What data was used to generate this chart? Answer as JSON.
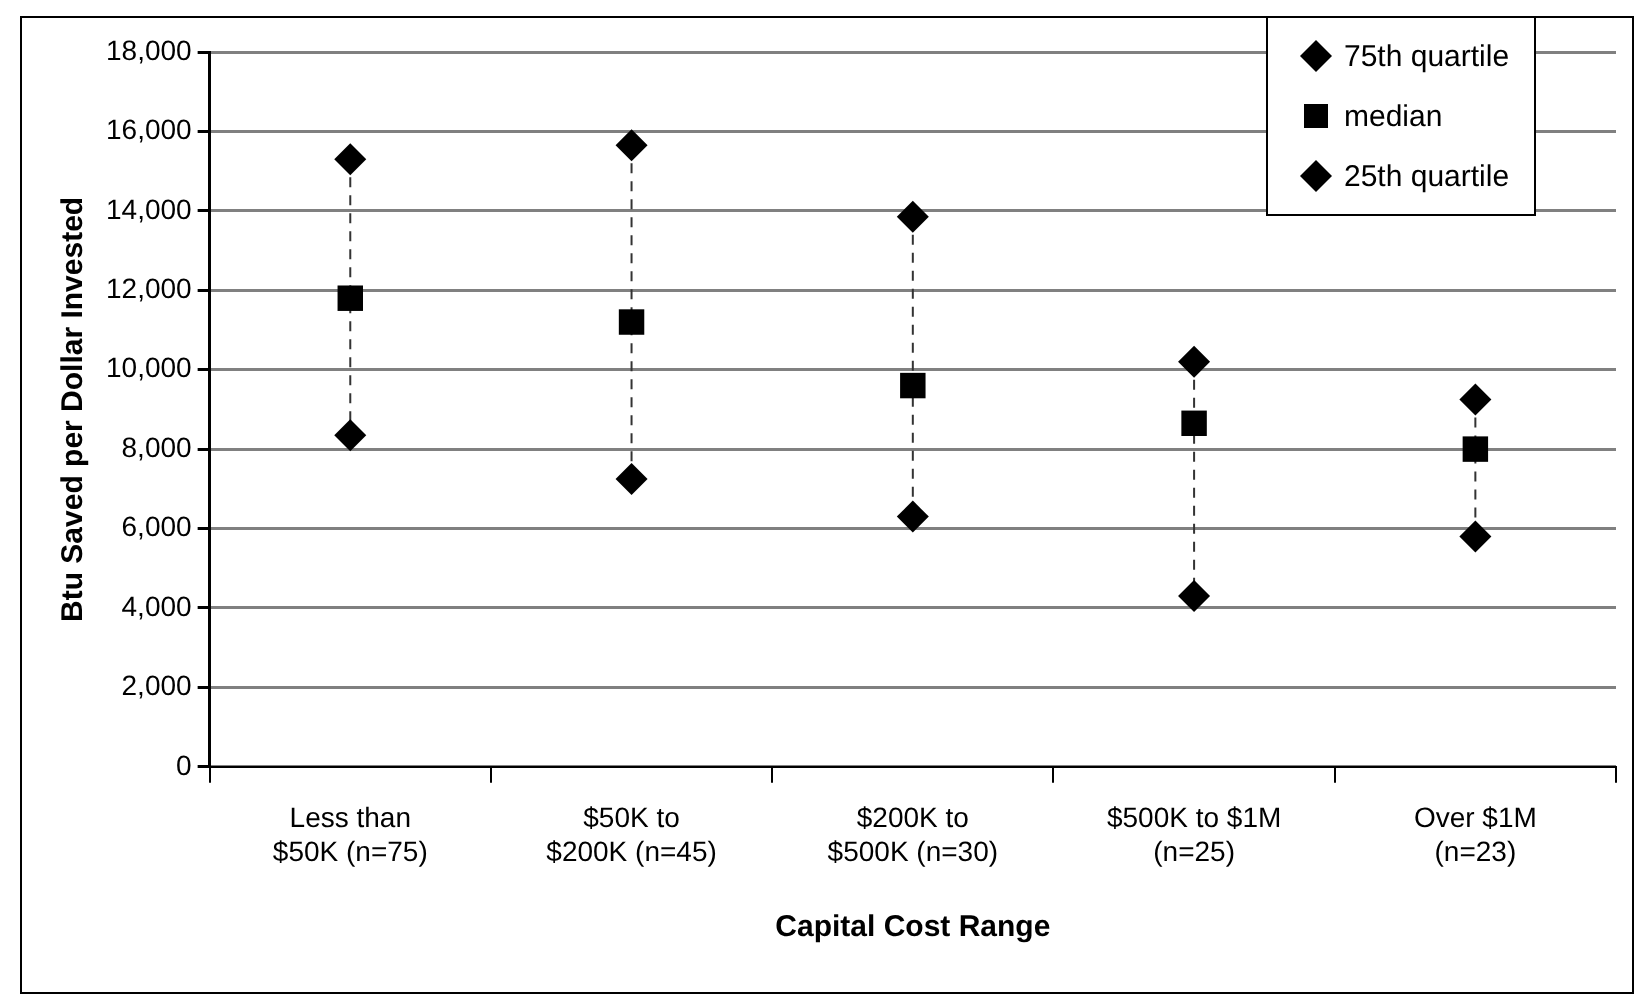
{
  "chart_data": {
    "type": "scatter",
    "xlabel": "Capital Cost Range",
    "ylabel": "Btu Saved per Dollar Invested",
    "categories": [
      "Less than $50K (n=75)",
      "$50K to $200K (n=45)",
      "$200K to $500K (n=30)",
      "$500K to $1M (n=25)",
      "Over $1M (n=23)"
    ],
    "series": [
      {
        "name": "75th quartile",
        "color": "#000000",
        "marker": "diamond",
        "values": [
          15300,
          15650,
          13850,
          10200,
          9250
        ]
      },
      {
        "name": "median",
        "color": "#000000",
        "marker": "square",
        "values": [
          11800,
          11200,
          9600,
          8650,
          8000
        ]
      },
      {
        "name": "25th quartile",
        "color": "#000000",
        "marker": "diamond",
        "values": [
          8350,
          7250,
          6300,
          4300,
          5800
        ]
      }
    ],
    "ylim": [
      0,
      18000
    ],
    "yticks": [
      {
        "value": 0,
        "label": "0"
      },
      {
        "value": 2000,
        "label": "2,000"
      },
      {
        "value": 4000,
        "label": "4,000"
      },
      {
        "value": 6000,
        "label": "6,000"
      },
      {
        "value": 8000,
        "label": "8,000"
      },
      {
        "value": 10000,
        "label": "10,000"
      },
      {
        "value": 12000,
        "label": "12,000"
      },
      {
        "value": 14000,
        "label": "14,000"
      },
      {
        "value": 16000,
        "label": "16,000"
      },
      {
        "value": 18000,
        "label": "18,000"
      }
    ],
    "grid": "y",
    "legend": "top right",
    "line_style": "dashed"
  }
}
